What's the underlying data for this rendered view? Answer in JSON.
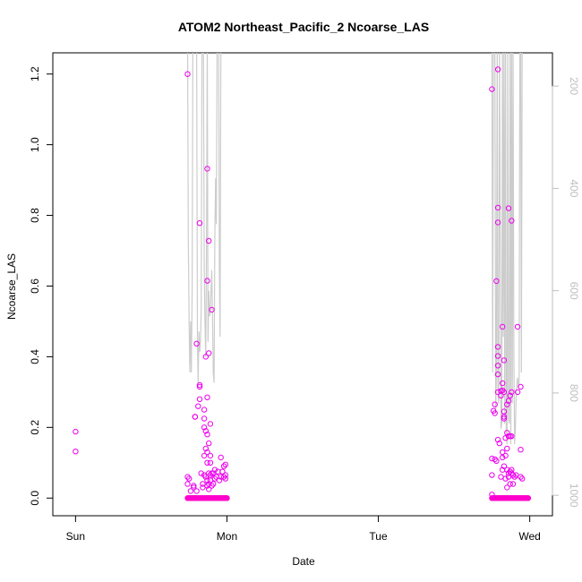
{
  "chart_data": {
    "type": "scatter",
    "title": "ATOM2 Northeast_Pacific_2 Ncoarse_LAS",
    "xlabel": "Date",
    "ylabel": "Ncoarse_LAS",
    "x_tick_labels": [
      "Sun",
      "Mon",
      "Tue",
      "Wed"
    ],
    "x_ticks_days": [
      0,
      1,
      2,
      3
    ],
    "xlim_days": [
      -0.15,
      3.15
    ],
    "ylim": [
      -0.05,
      1.26
    ],
    "y_ticks": [
      "0.0",
      "0.2",
      "0.4",
      "0.6",
      "0.8",
      "1.0",
      "1.2"
    ],
    "y_tick_values": [
      0,
      0.2,
      0.4,
      0.6,
      0.8,
      1.0,
      1.2
    ],
    "right_axis": {
      "reversed": true,
      "lim": [
        1040,
        135
      ],
      "ticks": [
        "200",
        "400",
        "600",
        "800",
        "1000"
      ],
      "tick_values": [
        200,
        400,
        600,
        800,
        1000
      ],
      "color": "#bebebe"
    },
    "grid": false,
    "legend": "none",
    "point_color": "#ee00ee",
    "zero_point_color": "#ff00cc",
    "line_color": "#cccccc",
    "series": [
      {
        "type": "scatter",
        "points": [
          [
            0.0,
            0.188
          ],
          [
            0.0,
            0.132
          ],
          [
            0.74,
            1.2
          ],
          [
            0.74,
            0.06
          ],
          [
            0.74,
            0.04
          ],
          [
            0.75,
            0.055
          ],
          [
            0.76,
            0.02
          ],
          [
            0.78,
            0.035
          ],
          [
            0.78,
            0.03
          ],
          [
            0.79,
            0.23
          ],
          [
            0.79,
            0.23
          ],
          [
            0.8,
            0.437
          ],
          [
            0.8,
            0.02
          ],
          [
            0.81,
            0.26
          ],
          [
            0.82,
            0.778
          ],
          [
            0.82,
            0.32
          ],
          [
            0.82,
            0.315
          ],
          [
            0.82,
            0.28
          ],
          [
            0.83,
            0.07
          ],
          [
            0.84,
            0.04
          ],
          [
            0.84,
            0.03
          ],
          [
            0.85,
            0.25
          ],
          [
            0.85,
            0.225
          ],
          [
            0.85,
            0.2
          ],
          [
            0.85,
            0.12
          ],
          [
            0.85,
            0.065
          ],
          [
            0.86,
            0.4
          ],
          [
            0.86,
            0.19
          ],
          [
            0.86,
            0.14
          ],
          [
            0.86,
            0.06
          ],
          [
            0.87,
            0.932
          ],
          [
            0.87,
            0.615
          ],
          [
            0.87,
            0.285
          ],
          [
            0.87,
            0.18
          ],
          [
            0.87,
            0.13
          ],
          [
            0.87,
            0.1
          ],
          [
            0.87,
            0.05
          ],
          [
            0.87,
            0.035
          ],
          [
            0.88,
            0.728
          ],
          [
            0.88,
            0.41
          ],
          [
            0.88,
            0.155
          ],
          [
            0.88,
            0.07
          ],
          [
            0.88,
            0.04
          ],
          [
            0.88,
            0.025
          ],
          [
            0.89,
            0.21
          ],
          [
            0.89,
            0.12
          ],
          [
            0.89,
            0.1
          ],
          [
            0.89,
            0.065
          ],
          [
            0.89,
            0.05
          ],
          [
            0.9,
            0.533
          ],
          [
            0.9,
            0.07
          ],
          [
            0.9,
            0.035
          ],
          [
            0.91,
            0.07
          ],
          [
            0.91,
            0.04
          ],
          [
            0.92,
            0.08
          ],
          [
            0.92,
            0.055
          ],
          [
            0.93,
            0.06
          ],
          [
            0.94,
            0.075
          ],
          [
            0.95,
            0.05
          ],
          [
            0.96,
            0.115
          ],
          [
            0.96,
            0.06
          ],
          [
            0.97,
            0.075
          ],
          [
            0.98,
            0.09
          ],
          [
            0.98,
            0.06
          ],
          [
            0.99,
            0.095
          ],
          [
            0.99,
            0.065
          ],
          [
            0.99,
            0.055
          ],
          [
            2.75,
            1.157
          ],
          [
            2.75,
            0.112
          ],
          [
            2.75,
            0.065
          ],
          [
            2.75,
            0.01
          ],
          [
            2.76,
            0.247
          ],
          [
            2.77,
            0.265
          ],
          [
            2.77,
            0.24
          ],
          [
            2.77,
            0.11
          ],
          [
            2.78,
            0.614
          ],
          [
            2.78,
            0.105
          ],
          [
            2.79,
            1.213
          ],
          [
            2.79,
            0.822
          ],
          [
            2.79,
            0.78
          ],
          [
            2.79,
            0.428
          ],
          [
            2.79,
            0.402
          ],
          [
            2.79,
            0.375
          ],
          [
            2.79,
            0.35
          ],
          [
            2.79,
            0.3
          ],
          [
            2.79,
            0.165
          ],
          [
            2.8,
            0.155
          ],
          [
            2.81,
            0.303
          ],
          [
            2.81,
            0.29
          ],
          [
            2.81,
            0.06
          ],
          [
            2.82,
            0.485
          ],
          [
            2.82,
            0.325
          ],
          [
            2.82,
            0.305
          ],
          [
            2.82,
            0.13
          ],
          [
            2.82,
            0.115
          ],
          [
            2.82,
            0.08
          ],
          [
            2.83,
            0.39
          ],
          [
            2.83,
            0.3
          ],
          [
            2.83,
            0.245
          ],
          [
            2.83,
            0.23
          ],
          [
            2.83,
            0.225
          ],
          [
            2.83,
            0.09
          ],
          [
            2.84,
            0.17
          ],
          [
            2.84,
            0.12
          ],
          [
            2.84,
            0.055
          ],
          [
            2.85,
            0.265
          ],
          [
            2.85,
            0.185
          ],
          [
            2.85,
            0.14
          ],
          [
            2.85,
            0.08
          ],
          [
            2.85,
            0.03
          ],
          [
            2.86,
            0.82
          ],
          [
            2.86,
            0.275
          ],
          [
            2.86,
            0.175
          ],
          [
            2.86,
            0.07
          ],
          [
            2.86,
            0.06
          ],
          [
            2.87,
            0.29
          ],
          [
            2.87,
            0.175
          ],
          [
            2.87,
            0.075
          ],
          [
            2.87,
            0.04
          ],
          [
            2.88,
            0.785
          ],
          [
            2.88,
            0.3
          ],
          [
            2.88,
            0.175
          ],
          [
            2.88,
            0.08
          ],
          [
            2.88,
            0.07
          ],
          [
            2.89,
            0.065
          ],
          [
            2.89,
            0.04
          ],
          [
            2.9,
            0.06
          ],
          [
            2.91,
            0.065
          ],
          [
            2.92,
            0.485
          ],
          [
            2.92,
            0.3
          ],
          [
            2.94,
            0.315
          ],
          [
            2.94,
            0.137
          ],
          [
            2.94,
            0.06
          ],
          [
            2.95,
            0.055
          ]
        ]
      },
      {
        "type": "scatter-zero",
        "x_range_1": [
          0.74,
          1.0
        ],
        "x_range_2": [
          2.75,
          2.99
        ],
        "value": 0.0
      },
      {
        "type": "line",
        "axis": "right",
        "points": [
          [
            0.74,
            110
          ],
          [
            0.745,
            500
          ],
          [
            0.75,
            660
          ],
          [
            0.755,
            760
          ],
          [
            0.76,
            660
          ],
          [
            0.765,
            760
          ],
          [
            0.77,
            600
          ],
          [
            0.775,
            110
          ],
          [
            0.8,
            110
          ],
          [
            0.805,
            700
          ],
          [
            0.81,
            780
          ],
          [
            0.815,
            680
          ],
          [
            0.82,
            720
          ],
          [
            0.825,
            700
          ],
          [
            0.83,
            640
          ],
          [
            0.835,
            110
          ],
          [
            0.845,
            110
          ],
          [
            0.85,
            560
          ],
          [
            0.855,
            660
          ],
          [
            0.86,
            730
          ],
          [
            0.865,
            520
          ],
          [
            0.87,
            110
          ],
          [
            0.875,
            700
          ],
          [
            0.88,
            600
          ],
          [
            0.885,
            650
          ],
          [
            0.89,
            640
          ],
          [
            0.895,
            600
          ],
          [
            0.9,
            560
          ],
          [
            0.905,
            660
          ],
          [
            0.91,
            760
          ],
          [
            0.915,
            780
          ],
          [
            0.92,
            500
          ],
          [
            0.925,
            380
          ],
          [
            0.93,
            470
          ],
          [
            0.935,
            110
          ],
          [
            0.945,
            110
          ],
          [
            0.95,
            560
          ],
          [
            0.955,
            690
          ],
          [
            0.96,
            110
          ],
          [
            2.75,
            110
          ],
          [
            2.755,
            760
          ],
          [
            2.76,
            110
          ],
          [
            2.77,
            110
          ],
          [
            2.775,
            840
          ],
          [
            2.78,
            760
          ],
          [
            2.785,
            110
          ],
          [
            2.79,
            800
          ],
          [
            2.795,
            820
          ],
          [
            2.8,
            110
          ],
          [
            2.81,
            870
          ],
          [
            2.815,
            860
          ],
          [
            2.82,
            110
          ],
          [
            2.825,
            690
          ],
          [
            2.83,
            110
          ],
          [
            2.835,
            860
          ],
          [
            2.84,
            110
          ],
          [
            2.845,
            870
          ],
          [
            2.85,
            900
          ],
          [
            2.855,
            110
          ],
          [
            2.86,
            850
          ],
          [
            2.865,
            860
          ],
          [
            2.87,
            110
          ],
          [
            2.875,
            900
          ],
          [
            2.88,
            110
          ],
          [
            2.885,
            820
          ],
          [
            2.89,
            110
          ],
          [
            2.895,
            720
          ],
          [
            2.9,
            900
          ],
          [
            2.905,
            870
          ],
          [
            2.91,
            810
          ],
          [
            2.915,
            780
          ],
          [
            2.92,
            770
          ],
          [
            2.925,
            790
          ],
          [
            2.93,
            780
          ],
          [
            2.935,
            110
          ],
          [
            2.94,
            110
          ],
          [
            2.945,
            760
          ],
          [
            2.95,
            110
          ]
        ]
      }
    ]
  }
}
